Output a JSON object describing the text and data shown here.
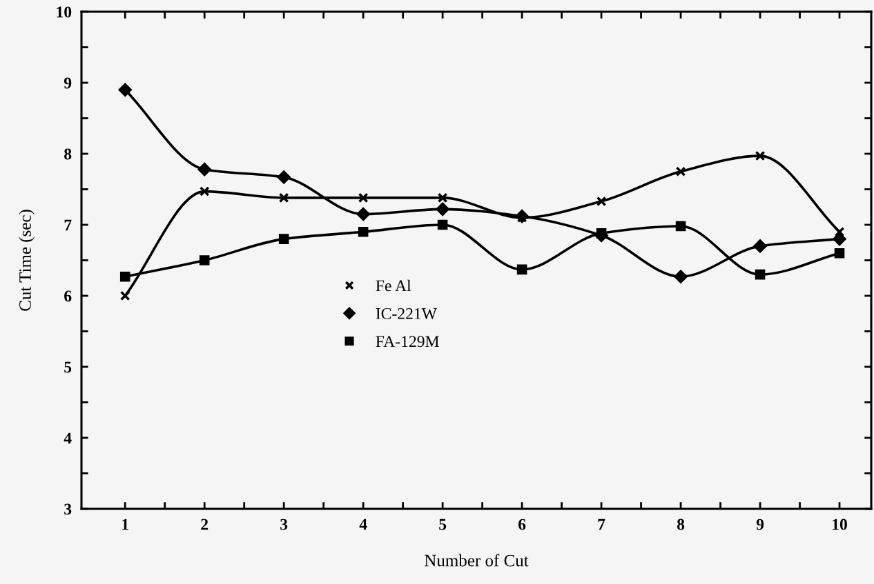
{
  "chart_data": {
    "type": "line",
    "xlabel": "Number of Cut",
    "ylabel": "Cut Time (sec)",
    "x": [
      1,
      2,
      3,
      4,
      5,
      6,
      7,
      8,
      9,
      10
    ],
    "series": [
      {
        "name": "Fe Al",
        "color": "#000000",
        "marker": "cross",
        "values": [
          6.0,
          7.47,
          7.38,
          7.38,
          7.38,
          7.1,
          7.33,
          7.75,
          7.97,
          6.9
        ]
      },
      {
        "name": "IC-221W",
        "color": "#000000",
        "marker": "diamond",
        "values": [
          8.9,
          7.78,
          7.67,
          7.15,
          7.22,
          7.12,
          6.85,
          6.27,
          6.7,
          6.8
        ]
      },
      {
        "name": "FA-129M",
        "color": "#000000",
        "marker": "square",
        "values": [
          6.27,
          6.5,
          6.8,
          6.9,
          7.0,
          6.37,
          6.88,
          6.98,
          6.3,
          6.6
        ]
      }
    ],
    "xlim": [
      0.45,
      10.4
    ],
    "ylim": [
      3,
      10
    ],
    "xticks": [
      1,
      {
        "value": 1.5,
        "label": null
      },
      2,
      {
        "value": 2.5,
        "label": null
      },
      3,
      {
        "value": 3.5,
        "label": null
      },
      4,
      {
        "value": 4.5,
        "label": null
      },
      5,
      {
        "value": 5.5,
        "label": null
      },
      6,
      {
        "value": 6.5,
        "label": null
      },
      7,
      {
        "value": 7.5,
        "label": null
      },
      8,
      {
        "value": 8.5,
        "label": null
      },
      9,
      {
        "value": 9.5,
        "label": null
      },
      10
    ],
    "yticks": [
      3,
      {
        "value": 3.5,
        "label": null
      },
      4,
      {
        "value": 4.5,
        "label": null
      },
      5,
      {
        "value": 5.5,
        "label": null
      },
      6,
      {
        "value": 6.5,
        "label": null
      },
      7,
      {
        "value": 7.5,
        "label": null
      },
      8,
      {
        "value": 8.5,
        "label": null
      },
      9,
      {
        "value": 9.5,
        "label": null
      },
      10
    ],
    "grid": false,
    "legend": "center left",
    "line_style": "solid"
  }
}
